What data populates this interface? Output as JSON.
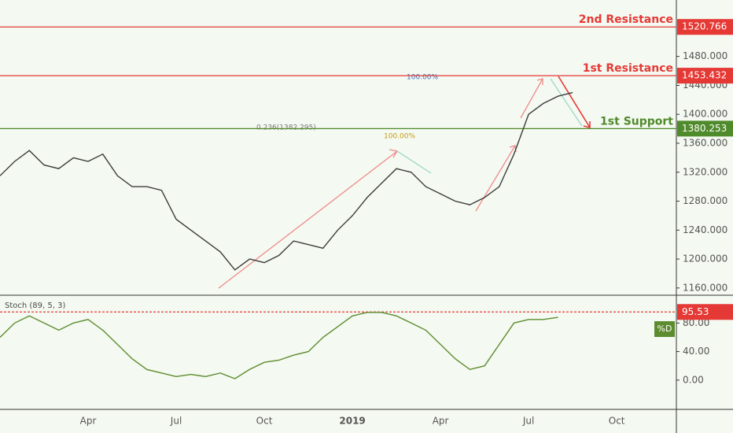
{
  "chart_data": [
    {
      "type": "line",
      "categories": [
        null,
        null,
        null,
        null,
        null,
        null,
        "Apr",
        null,
        null,
        null,
        null,
        null,
        "Jul",
        null,
        null,
        null,
        null,
        null,
        "Oct",
        null,
        null,
        null,
        null,
        null,
        "2019",
        null,
        null,
        null,
        null,
        null,
        "Apr",
        null,
        null,
        null,
        null,
        null,
        "Jul",
        null,
        null,
        null,
        null,
        null,
        "Oct",
        null,
        null,
        null
      ],
      "values": [
        1315,
        1335,
        1350,
        1330,
        1325,
        1340,
        1335,
        1345,
        1315,
        1300,
        1300,
        1295,
        1255,
        1240,
        1225,
        1210,
        1185,
        1200,
        1195,
        1205,
        1225,
        1220,
        1215,
        1240,
        1260,
        1285,
        1305,
        1325,
        1320,
        1300,
        1290,
        1280,
        1275,
        1285,
        1300,
        1345,
        1400,
        1415,
        1425,
        1430,
        null,
        null,
        null,
        null,
        null,
        null
      ],
      "color": "#3d3d3d",
      "ylim": [
        1150,
        1558
      ],
      "yticks": [
        {
          "value": 1160,
          "label": "1160.000"
        },
        {
          "value": 1200,
          "label": "1200.000"
        },
        {
          "value": 1240,
          "label": "1240.000"
        },
        {
          "value": 1280,
          "label": "1280.000"
        },
        {
          "value": 1320,
          "label": "1320.000"
        },
        {
          "value": 1360,
          "label": "1360.000"
        },
        {
          "value": 1400,
          "label": "1400.000"
        },
        {
          "value": 1440,
          "label": "1440.000"
        },
        {
          "value": 1480,
          "label": "1480.000"
        }
      ],
      "levels": [
        {
          "label": "2nd Resistance",
          "value": 1520.766,
          "color": "#e53935"
        },
        {
          "label": "1st Resistance",
          "value": 1453.432,
          "color": "#e53935"
        },
        {
          "label": "1st Support",
          "value": 1380.253,
          "color": "#4f8a2b"
        }
      ],
      "annotations": [
        "100.00%",
        "0.236(1382.295)",
        "100.00%"
      ]
    },
    {
      "type": "line",
      "title": "Stoch (89, 5, 3)",
      "series": [
        {
          "name": "%D",
          "color": "#5d8c2f",
          "values": [
            60,
            80,
            90,
            80,
            70,
            80,
            85,
            70,
            50,
            30,
            15,
            10,
            5,
            8,
            5,
            10,
            2,
            15,
            25,
            28,
            35,
            40,
            60,
            75,
            90,
            95,
            95,
            90,
            80,
            70,
            50,
            30,
            15,
            20,
            50,
            80,
            85,
            85,
            88,
            null,
            null,
            null,
            null,
            null,
            null,
            null
          ]
        }
      ],
      "ylim": [
        -41,
        119
      ],
      "yticks": [
        {
          "value": 0,
          "label": "0.00"
        },
        {
          "value": 40,
          "label": "40.00"
        },
        {
          "value": 80,
          "label": "80.00"
        }
      ],
      "level": {
        "value": 95.53,
        "color": "#e53935"
      }
    }
  ]
}
